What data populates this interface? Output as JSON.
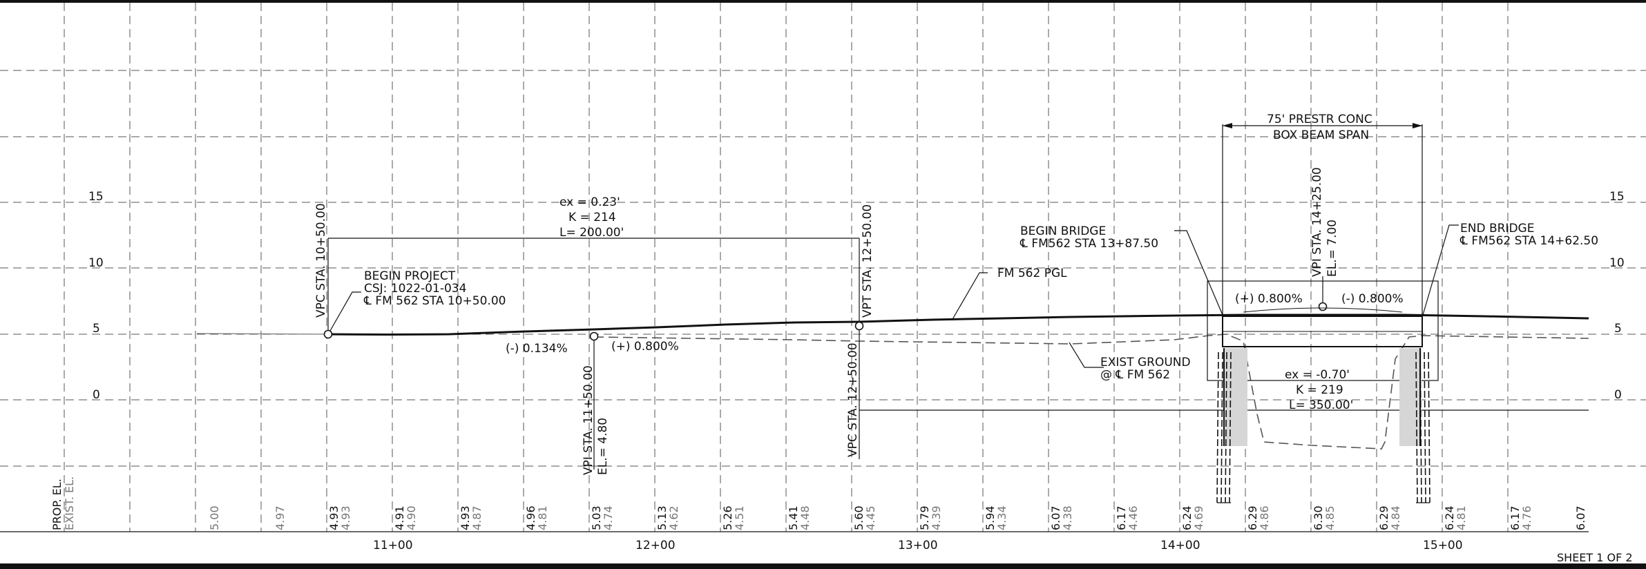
{
  "sheet_label": "SHEET 1 OF 2",
  "y_ticks": [
    "0",
    "5",
    "10",
    "15"
  ],
  "stations": [
    "11+00",
    "12+00",
    "13+00",
    "14+00",
    "15+00"
  ],
  "row_labels": {
    "prop": "PROP. EL.",
    "exist": "EXIST. EL."
  },
  "elevations": [
    {
      "p": "",
      "e": "5.00"
    },
    {
      "p": "",
      "e": "4.97"
    },
    {
      "p": "4.93",
      "e": "4.93"
    },
    {
      "p": "4.91",
      "e": "4.90"
    },
    {
      "p": "4.93",
      "e": "4.87"
    },
    {
      "p": "4.96",
      "e": "4.81"
    },
    {
      "p": "5.03",
      "e": "4.74"
    },
    {
      "p": "5.13",
      "e": "4.62"
    },
    {
      "p": "5.26",
      "e": "4.51"
    },
    {
      "p": "5.41",
      "e": "4.48"
    },
    {
      "p": "5.60",
      "e": "4.45"
    },
    {
      "p": "5.79",
      "e": "4.39"
    },
    {
      "p": "5.94",
      "e": "4.34"
    },
    {
      "p": "6.07",
      "e": "4.38"
    },
    {
      "p": "6.17",
      "e": "4.46"
    },
    {
      "p": "6.24",
      "e": "4.69"
    },
    {
      "p": "6.29",
      "e": "4.86"
    },
    {
      "p": "6.30",
      "e": "4.85"
    },
    {
      "p": "6.29",
      "e": "4.84"
    },
    {
      "p": "6.24",
      "e": "4.81"
    },
    {
      "p": "6.17",
      "e": "4.76"
    },
    {
      "p": "6.07",
      "e": ""
    }
  ],
  "labels": {
    "vpc1": "VPC STA. 10+50.00",
    "begin_project": [
      "BEGIN PROJECT",
      "CSJ: 1022-01-034",
      "℄ FM 562 STA 10+50.00"
    ],
    "curve1": [
      "ex = 0.23'",
      "K = 214",
      "L= 200.00'"
    ],
    "vpt1": "VPT STA. 12+50.00",
    "vpi1_sta": "VPI STA. 11+50.00",
    "vpi1_el": "EL.= 4.80",
    "grade1": "(-) 0.134%",
    "grade2": "(+) 0.800%",
    "vpc2": "VPC STA. 12+50.00",
    "fm562_pgl": "FM 562 PGL",
    "exist_ground": [
      "EXIST GROUND",
      "@ ℄ FM 562"
    ],
    "begin_bridge": [
      "BEGIN BRIDGE",
      "℄ FM562 STA 13+87.50"
    ],
    "span": [
      "75' PRESTR CONC",
      "BOX BEAM SPAN"
    ],
    "vpi2_sta": "VPI STA. 14+25.00",
    "vpi2_el": "EL.= 7.00",
    "grade3": "(+) 0.800%",
    "grade4": "(-) 0.800%",
    "end_bridge": [
      "END BRIDGE",
      "℄ FM562 STA 14+62.50"
    ],
    "curve2": [
      "ex = -0.70'",
      "K = 219",
      "L= 350.00'"
    ]
  }
}
